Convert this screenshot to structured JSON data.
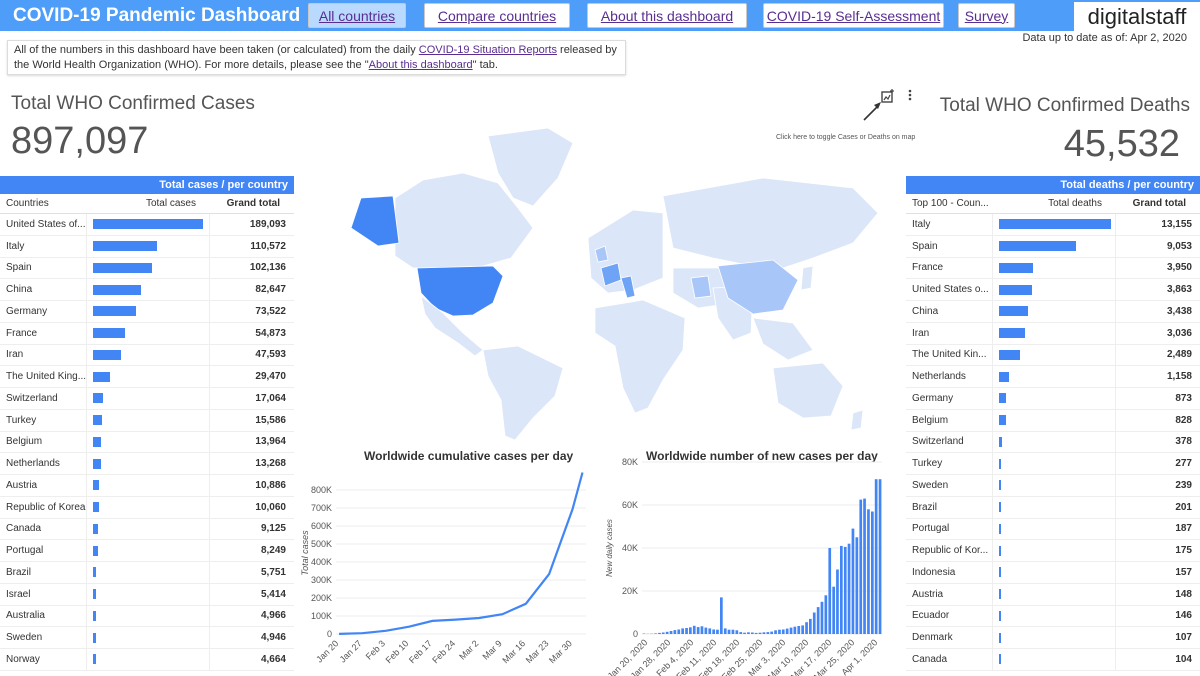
{
  "header": {
    "title": "COVID-19 Pandemic Dashboard",
    "nav": [
      "All countries",
      "Compare countries",
      "About this dashboard",
      "COVID-19 Self-Assessment",
      "Survey"
    ],
    "brand": "digitalstaff"
  },
  "updated": "Data up to date as of: Apr 2, 2020",
  "info": {
    "text1": "All of the numbers in this dashboard have been taken (or calculated) from the daily ",
    "link1": "COVID-19 Situation Reports",
    "text2": " released by the World Health Organization (WHO). For more details, please see the \"",
    "link2": "About this dashboard",
    "text3": "\" tab."
  },
  "kpi": {
    "cases_label": "Total WHO Confirmed Cases",
    "cases_value": "897,097",
    "deaths_label": "Total WHO Confirmed Deaths",
    "deaths_value": "45,532"
  },
  "map": {
    "toggle_note": "Click here to toggle Cases or Deaths on map"
  },
  "colors": {
    "accent": "#4285f4",
    "header": "#4e9df8"
  },
  "cases_table": {
    "heading": "Total cases / per country",
    "col_name": "Countries",
    "col_bar": "Total cases",
    "col_total": "Grand total",
    "rows": [
      {
        "name": "United States of...",
        "value": 189093,
        "display": "189,093"
      },
      {
        "name": "Italy",
        "value": 110572,
        "display": "110,572"
      },
      {
        "name": "Spain",
        "value": 102136,
        "display": "102,136"
      },
      {
        "name": "China",
        "value": 82647,
        "display": "82,647"
      },
      {
        "name": "Germany",
        "value": 73522,
        "display": "73,522"
      },
      {
        "name": "France",
        "value": 54873,
        "display": "54,873"
      },
      {
        "name": "Iran",
        "value": 47593,
        "display": "47,593"
      },
      {
        "name": "The United King...",
        "value": 29470,
        "display": "29,470"
      },
      {
        "name": "Switzerland",
        "value": 17064,
        "display": "17,064"
      },
      {
        "name": "Turkey",
        "value": 15586,
        "display": "15,586"
      },
      {
        "name": "Belgium",
        "value": 13964,
        "display": "13,964"
      },
      {
        "name": "Netherlands",
        "value": 13268,
        "display": "13,268"
      },
      {
        "name": "Austria",
        "value": 10886,
        "display": "10,886"
      },
      {
        "name": "Republic of Korea",
        "value": 10060,
        "display": "10,060"
      },
      {
        "name": "Canada",
        "value": 9125,
        "display": "9,125"
      },
      {
        "name": "Portugal",
        "value": 8249,
        "display": "8,249"
      },
      {
        "name": "Brazil",
        "value": 5751,
        "display": "5,751"
      },
      {
        "name": "Israel",
        "value": 5414,
        "display": "5,414"
      },
      {
        "name": "Australia",
        "value": 4966,
        "display": "4,966"
      },
      {
        "name": "Sweden",
        "value": 4946,
        "display": "4,946"
      },
      {
        "name": "Norway",
        "value": 4664,
        "display": "4,664"
      }
    ]
  },
  "deaths_table": {
    "heading": "Total deaths / per country",
    "col_name": "Top 100 - Coun...",
    "col_bar": "Total deaths",
    "col_total": "Grand total",
    "rows": [
      {
        "name": "Italy",
        "value": 13155,
        "display": "13,155"
      },
      {
        "name": "Spain",
        "value": 9053,
        "display": "9,053"
      },
      {
        "name": "France",
        "value": 3950,
        "display": "3,950"
      },
      {
        "name": "United States o...",
        "value": 3863,
        "display": "3,863"
      },
      {
        "name": "China",
        "value": 3438,
        "display": "3,438"
      },
      {
        "name": "Iran",
        "value": 3036,
        "display": "3,036"
      },
      {
        "name": "The United Kin...",
        "value": 2489,
        "display": "2,489"
      },
      {
        "name": "Netherlands",
        "value": 1158,
        "display": "1,158"
      },
      {
        "name": "Germany",
        "value": 873,
        "display": "873"
      },
      {
        "name": "Belgium",
        "value": 828,
        "display": "828"
      },
      {
        "name": "Switzerland",
        "value": 378,
        "display": "378"
      },
      {
        "name": "Turkey",
        "value": 277,
        "display": "277"
      },
      {
        "name": "Sweden",
        "value": 239,
        "display": "239"
      },
      {
        "name": "Brazil",
        "value": 201,
        "display": "201"
      },
      {
        "name": "Portugal",
        "value": 187,
        "display": "187"
      },
      {
        "name": "Republic of Kor...",
        "value": 175,
        "display": "175"
      },
      {
        "name": "Indonesia",
        "value": 157,
        "display": "157"
      },
      {
        "name": "Austria",
        "value": 148,
        "display": "148"
      },
      {
        "name": "Ecuador",
        "value": 146,
        "display": "146"
      },
      {
        "name": "Denmark",
        "value": 107,
        "display": "107"
      },
      {
        "name": "Canada",
        "value": 104,
        "display": "104"
      }
    ]
  },
  "chart_data": [
    {
      "type": "line",
      "title": "Worldwide cumulative cases per day",
      "xlabel": "",
      "ylabel": "Total cases",
      "x_ticks": [
        "Jan 20",
        "Jan 27",
        "Feb 3",
        "Feb 10",
        "Feb 17",
        "Feb 24",
        "Mar 2",
        "Mar 9",
        "Mar 16",
        "Mar 23",
        "Mar 30"
      ],
      "y_ticks": [
        "0",
        "100K",
        "200K",
        "300K",
        "400K",
        "500K",
        "600K",
        "700K",
        "800K"
      ],
      "ylim": [
        0,
        900000
      ],
      "x": [
        "Jan 20",
        "Jan 27",
        "Feb 3",
        "Feb 10",
        "Feb 17",
        "Feb 24",
        "Mar 2",
        "Mar 9",
        "Mar 16",
        "Mar 23",
        "Mar 30",
        "Apr 2"
      ],
      "values": [
        300,
        4500,
        17500,
        40500,
        72500,
        80000,
        89000,
        110000,
        168000,
        333000,
        693000,
        897097
      ]
    },
    {
      "type": "bar",
      "title": "Worldwide number of new cases per day",
      "xlabel": "",
      "ylabel": "New daily cases",
      "x_ticks": [
        "Jan 20, 2020",
        "Jan 28, 2020",
        "Feb 4, 2020",
        "Feb 11, 2020",
        "Feb 18, 2020",
        "Feb 25, 2020",
        "Mar 3, 2020",
        "Mar 10, 2020",
        "Mar 17, 2020",
        "Mar 25, 2020",
        "Apr 1, 2020"
      ],
      "y_ticks": [
        "0",
        "20K",
        "40K",
        "60K",
        "80K"
      ],
      "ylim": [
        0,
        80000
      ],
      "values": [
        200,
        100,
        150,
        300,
        500,
        700,
        1000,
        1400,
        1800,
        2100,
        2600,
        2800,
        3100,
        3800,
        3200,
        3600,
        3000,
        2600,
        2100,
        2000,
        17000,
        2600,
        2000,
        2000,
        1700,
        900,
        600,
        800,
        700,
        500,
        600,
        800,
        900,
        1100,
        1700,
        2000,
        2100,
        2500,
        3000,
        3400,
        3700,
        4000,
        5500,
        7000,
        10000,
        12500,
        15000,
        18000,
        40000,
        22000,
        30000,
        41000,
        40500,
        42000,
        49000,
        45000,
        62500,
        63000,
        58000,
        57000,
        72000,
        72000
      ]
    }
  ]
}
